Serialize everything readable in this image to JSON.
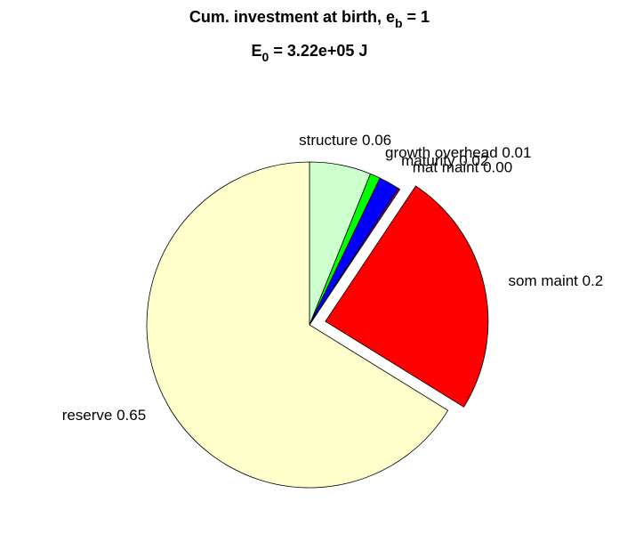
{
  "chart_data": {
    "type": "pie",
    "title": [
      [
        "Cum. investment at birth, e",
        "b",
        " = 1"
      ],
      [
        "E",
        "0",
        " = 3.22e+05 J"
      ]
    ],
    "categories": [
      "structure",
      "growth overhead",
      "maturity",
      "mat maint",
      "som maint",
      "reserve"
    ],
    "values": [
      0.06,
      0.01,
      0.02,
      0.002,
      0.24,
      0.65
    ],
    "value_labels": [
      "structure 0.06",
      "growth overhead 0.01",
      "maturity 0.02",
      "mat maint 0.00",
      "som maint 0.2",
      "reserve 0.65"
    ],
    "colors": [
      "#ccffcc",
      "#00ff00",
      "#0000ff",
      "#800080",
      "#ff0000",
      "#ffffcc"
    ],
    "explode": [
      false,
      false,
      false,
      false,
      true,
      false
    ]
  }
}
